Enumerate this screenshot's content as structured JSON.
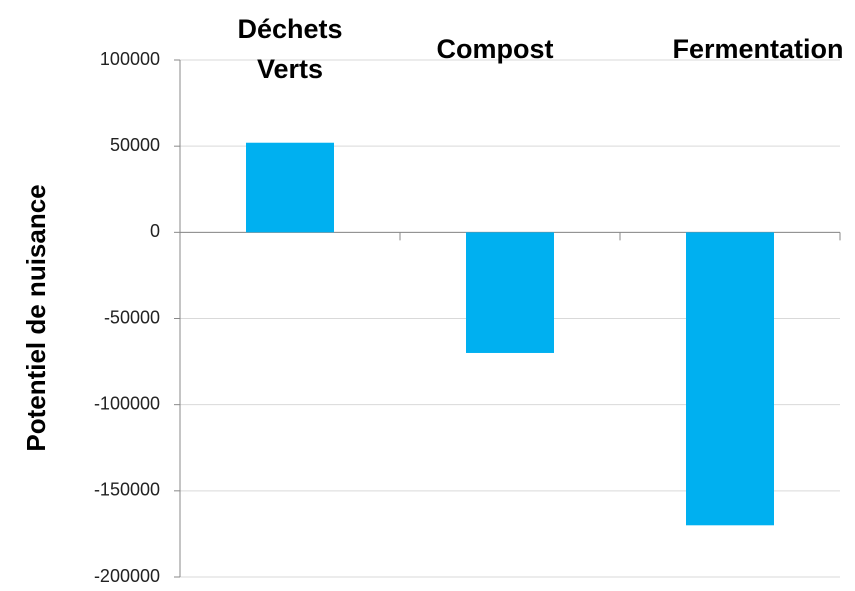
{
  "chart_data": {
    "type": "bar",
    "ylabel": "Potentiel de nuisance",
    "categories": [
      "Déchets Verts",
      "Compost",
      "Fermentation"
    ],
    "values": [
      52000,
      -70000,
      -170000
    ],
    "color": "#00b0f0",
    "ylim": [
      -200000,
      100000
    ],
    "yticks": [
      -200000,
      -150000,
      -100000,
      -50000,
      0,
      50000,
      100000
    ],
    "grid": true
  }
}
